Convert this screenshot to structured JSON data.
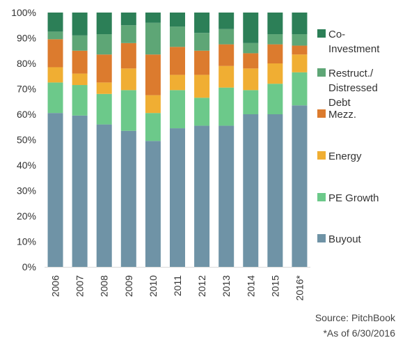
{
  "chart_data": {
    "type": "bar",
    "stacked": true,
    "categories": [
      "2006",
      "2007",
      "2008",
      "2009",
      "2010",
      "2011",
      "2012",
      "2013",
      "2014",
      "2015",
      "2016*"
    ],
    "series": [
      {
        "name": "Buyout",
        "color": "#6f93a6",
        "values": [
          60.5,
          59.5,
          56.0,
          53.5,
          49.5,
          54.5,
          55.5,
          55.5,
          60.0,
          60.0,
          63.5
        ]
      },
      {
        "name": "PE Growth",
        "color": "#6cc98a",
        "values": [
          12.0,
          12.0,
          12.0,
          16.0,
          11.0,
          15.0,
          11.0,
          15.0,
          9.5,
          12.0,
          13.0
        ]
      },
      {
        "name": "Energy",
        "color": "#f0ae33",
        "values": [
          6.0,
          4.5,
          4.5,
          8.5,
          7.0,
          6.0,
          9.0,
          8.5,
          8.5,
          8.0,
          7.0
        ]
      },
      {
        "name": "Mezz.",
        "color": "#dc7b2e",
        "values": [
          11.0,
          9.0,
          11.0,
          10.0,
          16.0,
          11.0,
          9.5,
          8.5,
          6.0,
          7.5,
          3.5
        ]
      },
      {
        "name": "Restruct./ Distressed Debt",
        "color": "#5ea676",
        "values": [
          3.0,
          6.0,
          8.0,
          7.0,
          12.5,
          8.0,
          7.0,
          6.0,
          4.0,
          4.0,
          4.5
        ]
      },
      {
        "name": "Co-Investment",
        "color": "#2c7f57",
        "values": [
          7.5,
          9.0,
          8.5,
          5.0,
          4.0,
          5.5,
          8.0,
          6.5,
          12.0,
          8.5,
          8.5
        ]
      }
    ],
    "legend_lines": [
      [
        "Co-",
        "Investment"
      ],
      [
        "Restruct./",
        "Distressed",
        "Debt"
      ],
      [
        "Mezz."
      ],
      [
        "Energy"
      ],
      [
        "PE Growth"
      ],
      [
        "Buyout"
      ]
    ],
    "y_ticks": [
      "0%",
      "10%",
      "20%",
      "30%",
      "40%",
      "50%",
      "60%",
      "70%",
      "80%",
      "90%",
      "100%"
    ],
    "ylim": [
      0,
      100
    ],
    "grid": false,
    "legend_position": "right"
  },
  "notes": {
    "source": "Source: PitchBook",
    "as_of": "*As of 6/30/2016"
  }
}
